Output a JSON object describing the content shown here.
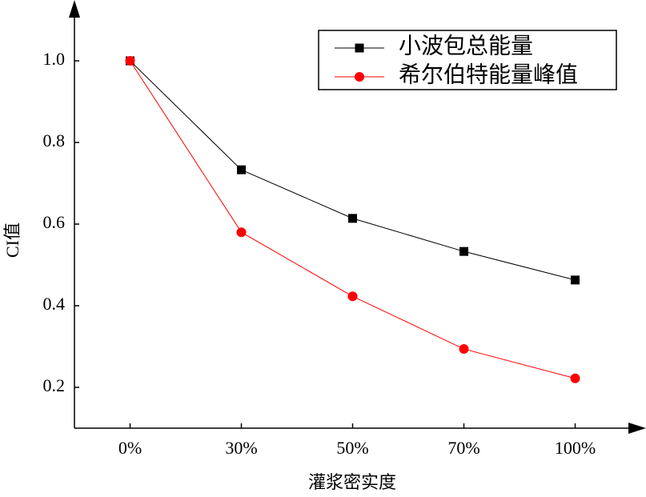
{
  "chart_data": {
    "type": "line",
    "xlabel": "灌浆密实度",
    "ylabel": "CI值",
    "categories": [
      "0%",
      "30%",
      "50%",
      "70%",
      "100%"
    ],
    "series": [
      {
        "name": "小波包总能量",
        "color": "#000000",
        "marker": "square",
        "values": [
          1.0,
          0.733,
          0.614,
          0.533,
          0.463
        ]
      },
      {
        "name": "希尔伯特能量峰值",
        "color": "#ff0000",
        "marker": "circle",
        "values": [
          1.0,
          0.58,
          0.423,
          0.294,
          0.222
        ]
      }
    ],
    "ylim": [
      0.1,
      1.1
    ],
    "yticks": [
      {
        "value": 0.2,
        "label": "0.2"
      },
      {
        "value": 0.4,
        "label": "0.4"
      },
      {
        "value": 0.6,
        "label": "0.6"
      },
      {
        "value": 0.8,
        "label": "0.8"
      },
      {
        "value": 1.0,
        "label": "1.0"
      }
    ],
    "legend": "upper right"
  }
}
